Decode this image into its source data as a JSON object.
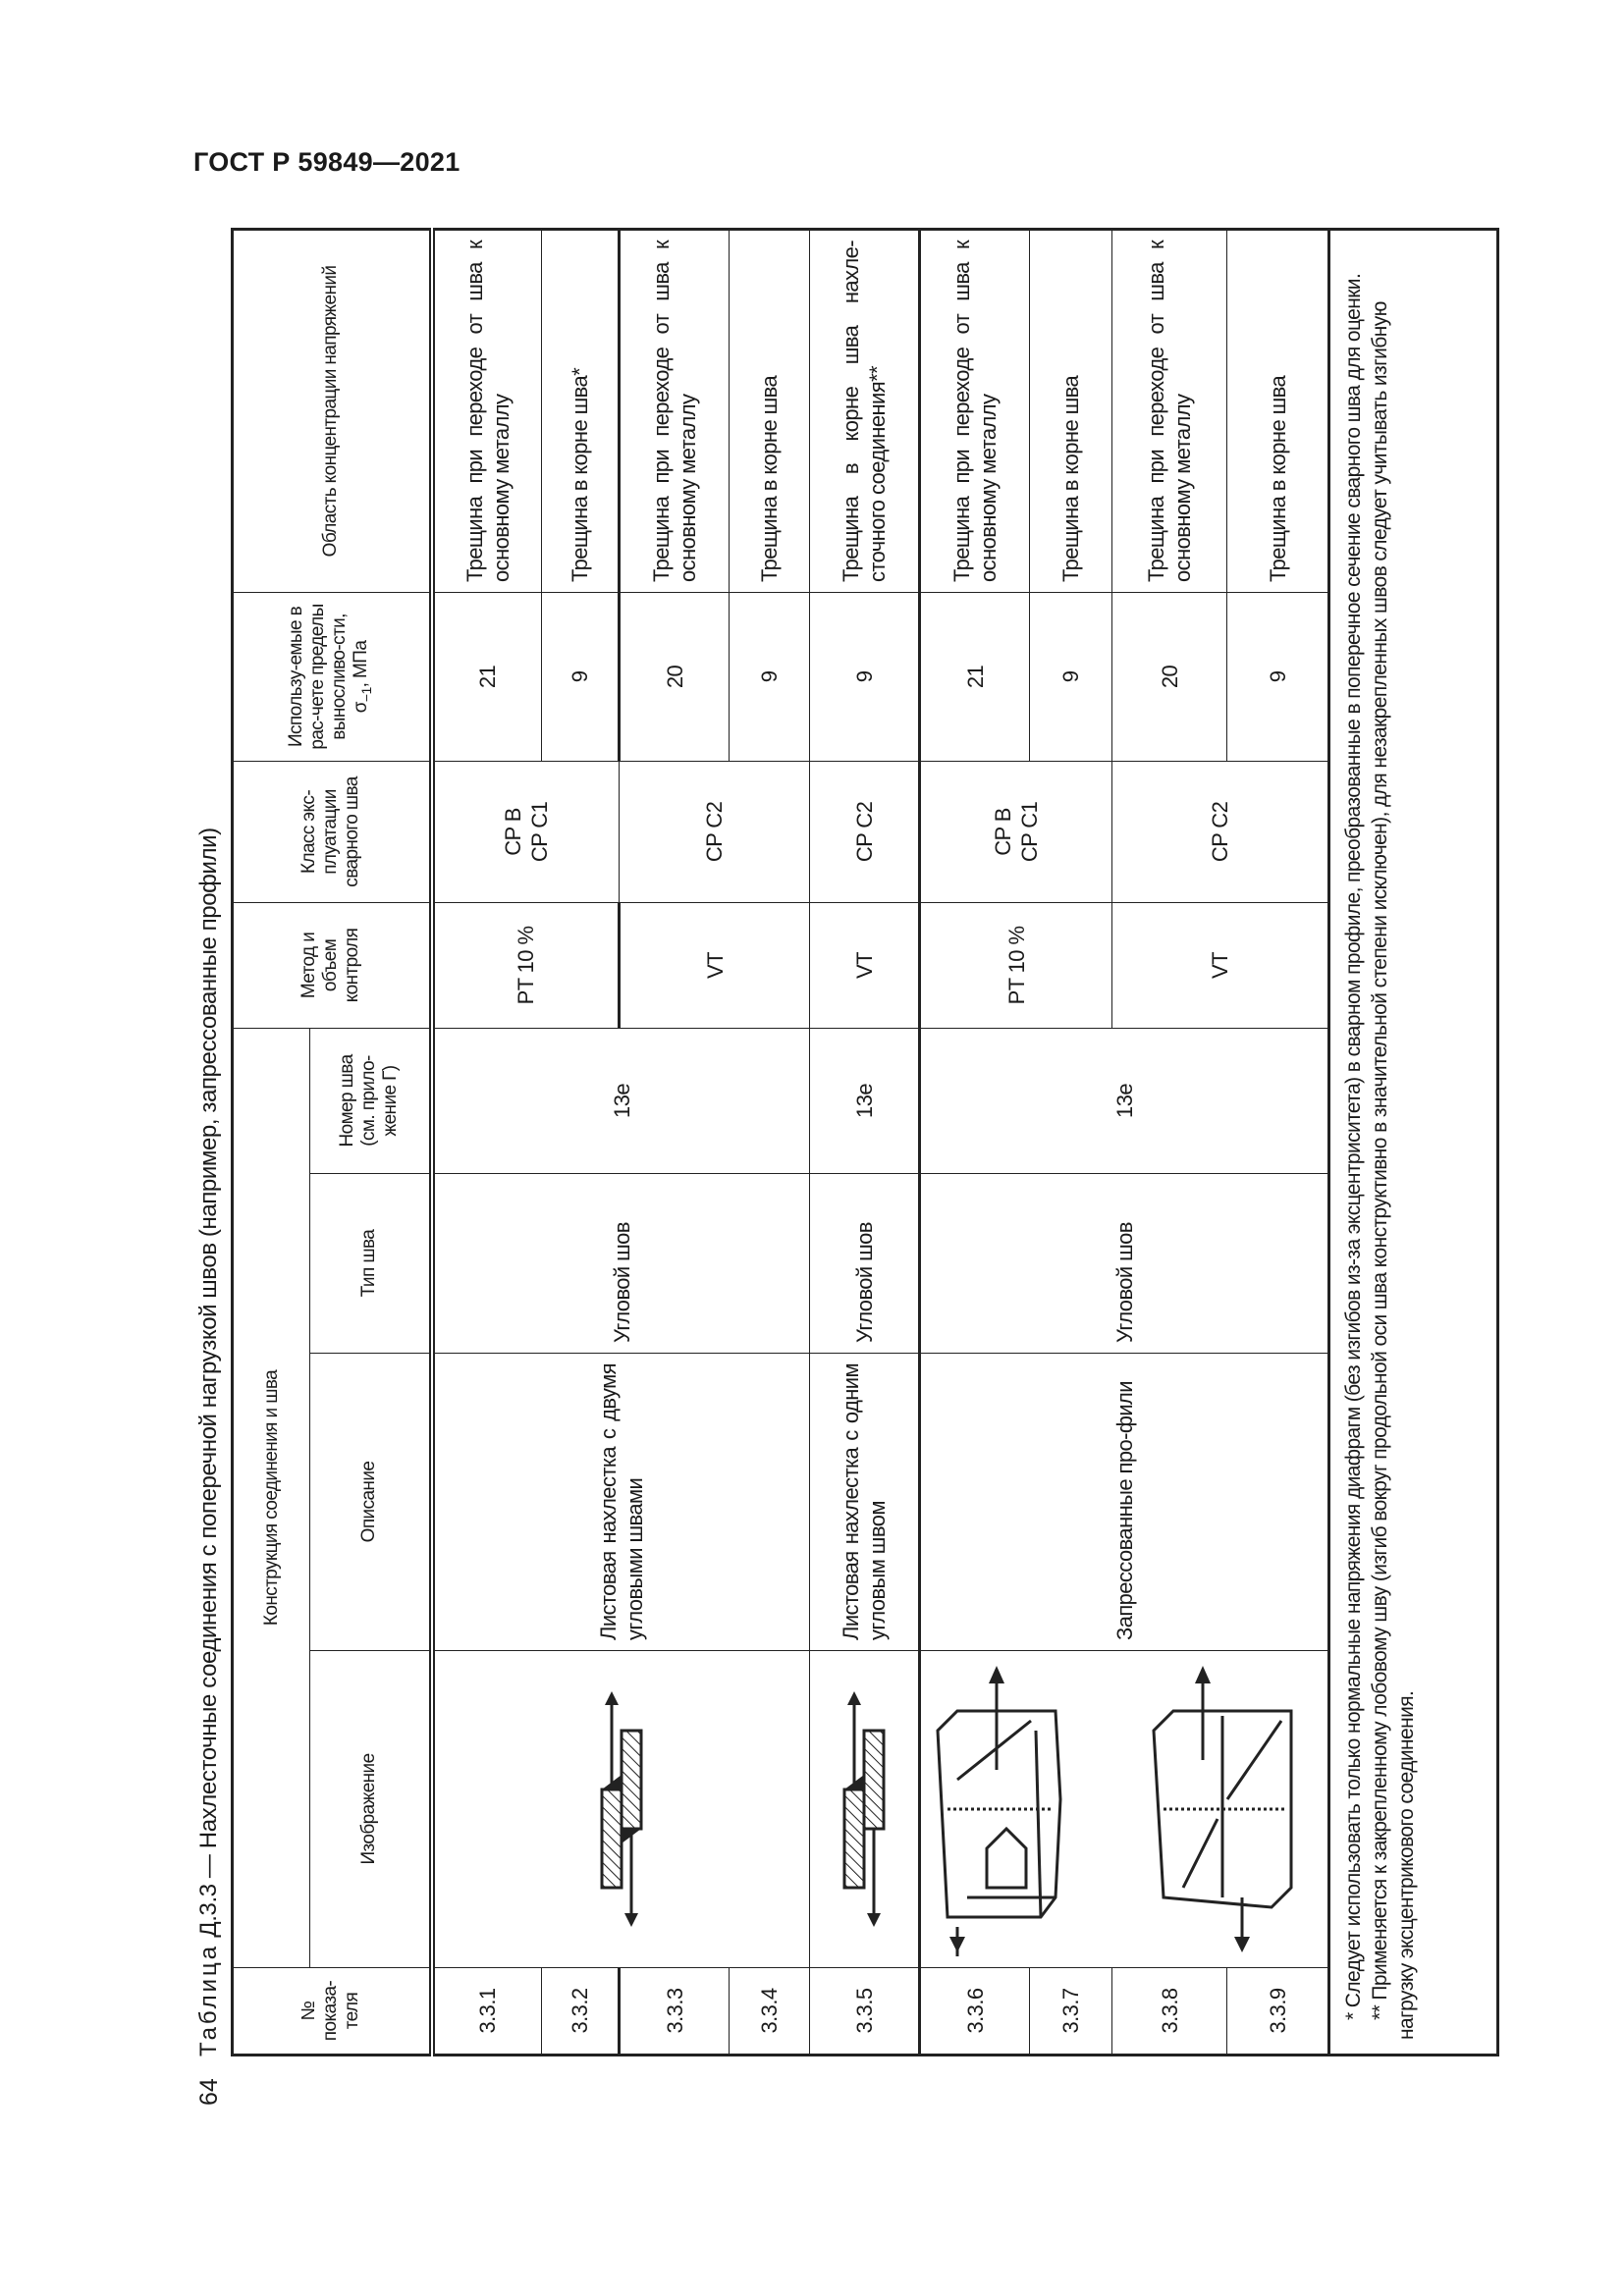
{
  "header": {
    "standard": "ГОСТ Р 59849—2021",
    "page_number": "64"
  },
  "caption": {
    "prefix": "Таблица",
    "title": " Д.3.3 — Нахлесточные соединения с поперечной нагрузкой швов (например, запрессованные профили)"
  },
  "columns": {
    "number": "№ показа-теля",
    "construction": "Конструкция соединения и шва",
    "image": "Изображение",
    "description": "Описание",
    "weld_type": "Тип шва",
    "weld_number": "Номер шва (см. прило-жение Г)",
    "method": "Метод и объем контроля",
    "class": "Класс экс-плуатации сварного шва",
    "limits_prefix": "Использу-емые в рас-чете пределы выносливо-сти, σ",
    "limits_sub": "−1",
    "limits_suffix": ", МПа",
    "area": "Область концентрации напряжений"
  },
  "groups": [
    {
      "image": "lap-joint-two-fillet-welds",
      "description": "Листовая нахлестка с двумя угловыми швами",
      "weld_type": "Угловой шов",
      "weld_number": "13е",
      "rows": [
        {
          "id": "3.3.1",
          "limit": "21",
          "area": "Трещина при переходе от шва к основному металлу"
        },
        {
          "id": "3.3.2",
          "limit": "9",
          "area": "Трещина в корне шва*"
        },
        {
          "id": "3.3.3",
          "limit": "20",
          "area": "Трещина при переходе от шва к основному металлу"
        },
        {
          "id": "3.3.4",
          "limit": "9",
          "area": "Трещина в корне шва"
        }
      ],
      "methods": [
        {
          "method": "PT 10 %",
          "class": [
            "CP B",
            "CP C1"
          ]
        },
        {
          "method": "VT",
          "class": [
            "CP C2"
          ]
        }
      ]
    },
    {
      "image": "lap-joint-one-fillet-weld",
      "description": "Листовая нахлестка с одним угловым швом",
      "weld_type": "Угловой шов",
      "weld_number": "13е",
      "rows": [
        {
          "id": "3.3.5",
          "limit": "9",
          "area": "Трещина в корне шва нахле-сточного соединения**"
        }
      ],
      "methods": [
        {
          "method": "VT",
          "class": [
            "CP C2"
          ]
        }
      ]
    },
    {
      "image": "pressed-profiles",
      "description": "Запрессованные про-фили",
      "weld_type": "Угловой шов",
      "weld_number": "13е",
      "rows": [
        {
          "id": "3.3.6",
          "limit": "21",
          "area": "Трещина при переходе от шва к основному металлу"
        },
        {
          "id": "3.3.7",
          "limit": "9",
          "area": "Трещина в корне шва"
        },
        {
          "id": "3.3.8",
          "limit": "20",
          "area": "Трещина при переходе от шва к основному металлу"
        },
        {
          "id": "3.3.9",
          "limit": "9",
          "area": "Трещина в корне шва"
        }
      ],
      "methods": [
        {
          "method": "PT 10 %",
          "class": [
            "CP B",
            "CP C1"
          ]
        },
        {
          "method": "VT",
          "class": [
            "CP C2"
          ]
        }
      ]
    }
  ],
  "footnotes": [
    "* Следует использовать только нормальные напряжения диафрагм (без изгибов из-за эксцентриситета) в сварном профиле, преобразованные в поперечное сечение сварного шва для оценки.",
    "** Применяется к закрепленному лобовому шву (изгиб вокруг продольной оси шва конструктивно в значительной степени исключен), для незакрепленных швов следует учитывать изгибную нагрузку эксцентрикового соединения."
  ]
}
